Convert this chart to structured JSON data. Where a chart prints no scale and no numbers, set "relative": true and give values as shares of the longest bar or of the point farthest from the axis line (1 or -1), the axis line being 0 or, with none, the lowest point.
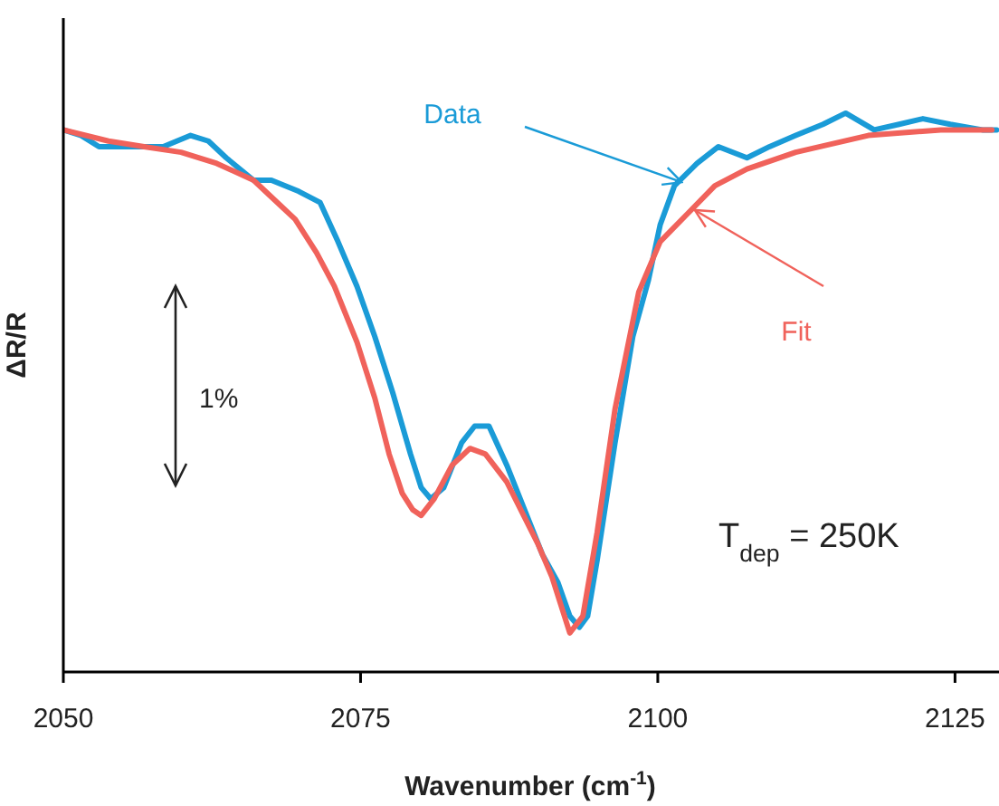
{
  "chart_data": {
    "type": "line",
    "relative": true,
    "xlabel": "Wavenumber (cm$^{-1}$)",
    "ylabel": "ΔR/R",
    "xlim": [
      2050,
      2128.7
    ],
    "xticks": [
      2050,
      2075,
      2100,
      2125
    ],
    "grid": false,
    "legend": false,
    "marker": "none",
    "line_style": "solid",
    "annotations": [
      "1%",
      "T$_{dep}$ = 250K"
    ],
    "series": [
      {
        "name": "Data",
        "color": "#1a9bd7",
        "x": [
          2050.0,
          2051.5,
          2053.0,
          2054.6,
          2056.1,
          2058.4,
          2060.7,
          2062.2,
          2063.7,
          2066.0,
          2067.5,
          2069.8,
          2071.6,
          2073.1,
          2074.7,
          2076.2,
          2077.7,
          2079.2,
          2080.1,
          2080.9,
          2082.0,
          2083.5,
          2084.6,
          2085.8,
          2087.3,
          2088.8,
          2090.3,
          2091.6,
          2092.6,
          2093.4,
          2094.1,
          2094.9,
          2096.4,
          2097.9,
          2099.2,
          2100.2,
          2101.4,
          2103.3,
          2105.1,
          2107.5,
          2109.4,
          2111.6,
          2113.9,
          2115.8,
          2118.2,
          2120.3,
          2122.3,
          2124.6,
          2127.3,
          2128.5
        ],
        "values": [
          0.97,
          0.96,
          0.94,
          0.94,
          0.94,
          0.94,
          0.96,
          0.95,
          0.92,
          0.88,
          0.88,
          0.86,
          0.84,
          0.77,
          0.69,
          0.6,
          0.5,
          0.39,
          0.33,
          0.31,
          0.33,
          0.41,
          0.44,
          0.44,
          0.37,
          0.29,
          0.21,
          0.16,
          0.1,
          0.08,
          0.1,
          0.2,
          0.41,
          0.6,
          0.7,
          0.8,
          0.87,
          0.91,
          0.94,
          0.92,
          0.94,
          0.96,
          0.98,
          1.0,
          0.97,
          0.98,
          0.99,
          0.98,
          0.97,
          0.97
        ]
      },
      {
        "name": "Fit",
        "color": "#f0625b",
        "x": [
          2050.0,
          2053.8,
          2056.8,
          2059.9,
          2062.9,
          2066.0,
          2067.5,
          2069.5,
          2071.3,
          2072.8,
          2074.7,
          2076.2,
          2077.4,
          2078.5,
          2079.4,
          2080.1,
          2081.2,
          2082.7,
          2084.2,
          2085.5,
          2087.3,
          2089.9,
          2091.1,
          2092.6,
          2093.7,
          2094.9,
          2096.4,
          2098.4,
          2100.2,
          2102.5,
          2104.8,
          2107.5,
          2111.6,
          2117.7,
          2123.8,
          2128.1
        ],
        "values": [
          0.97,
          0.95,
          0.94,
          0.93,
          0.91,
          0.88,
          0.85,
          0.81,
          0.75,
          0.69,
          0.59,
          0.49,
          0.39,
          0.32,
          0.29,
          0.28,
          0.31,
          0.37,
          0.4,
          0.39,
          0.34,
          0.23,
          0.17,
          0.07,
          0.1,
          0.25,
          0.47,
          0.68,
          0.77,
          0.82,
          0.87,
          0.9,
          0.93,
          0.96,
          0.97,
          0.97
        ]
      }
    ]
  }
}
